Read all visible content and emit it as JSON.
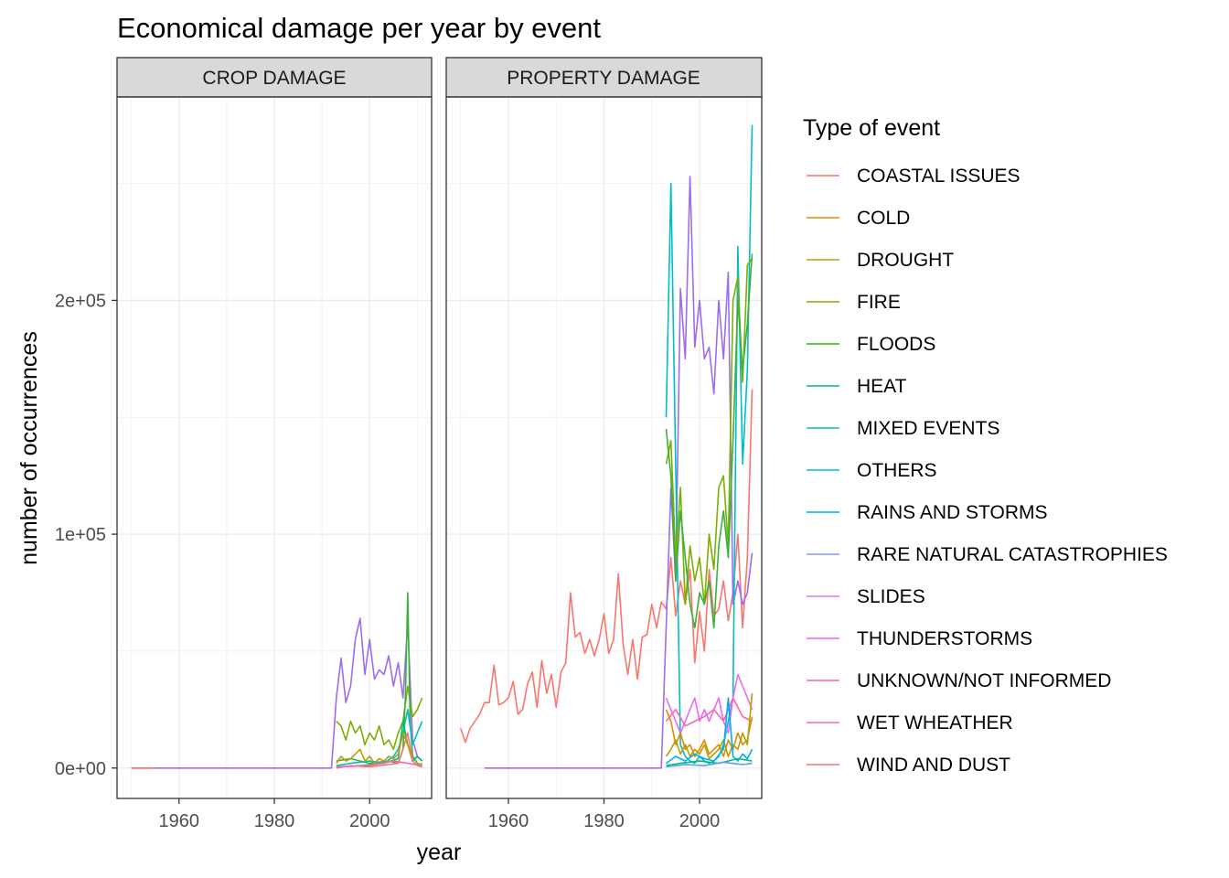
{
  "chart_data": {
    "type": "line",
    "title": "Economical damage per year by event",
    "xlabel": "year",
    "ylabel": "number of occurrences",
    "x_ticks": [
      1960,
      1980,
      2000
    ],
    "x_tick_labels": [
      "1960",
      "1980",
      "2000"
    ],
    "y_ticks": [
      0,
      100000,
      200000
    ],
    "y_tick_labels": [
      "0e+00",
      "1e+05",
      "2e+05"
    ],
    "xlim": [
      1947,
      2013
    ],
    "ylim": [
      -13000,
      287000
    ],
    "grid": true,
    "legend_title": "Type of event",
    "legend_position": "right",
    "series_styles": [
      {
        "name": "COASTAL ISSUES",
        "color": "#F8766D"
      },
      {
        "name": "COLD",
        "color": "#E18A00"
      },
      {
        "name": "DROUGHT",
        "color": "#BE9C00"
      },
      {
        "name": "FIRE",
        "color": "#8CAB00"
      },
      {
        "name": "FLOODS",
        "color": "#24B700"
      },
      {
        "name": "HEAT",
        "color": "#00BE70"
      },
      {
        "name": "MIXED EVENTS",
        "color": "#00C1AB"
      },
      {
        "name": "OTHERS",
        "color": "#00BBDA"
      },
      {
        "name": "RAINS AND STORMS",
        "color": "#00ACFC"
      },
      {
        "name": "RARE NATURAL CATASTROPHIES",
        "color": "#8B93FF"
      },
      {
        "name": "SLIDES",
        "color": "#D575FE"
      },
      {
        "name": "THUNDERSTORMS",
        "color": "#F962DD"
      },
      {
        "name": "UNKNOWN/NOT INFORMED",
        "color": "#FF65AC"
      },
      {
        "name": "WET WHEATHER",
        "color": "#FF6C91"
      },
      {
        "name": "WIND AND DUST",
        "color": "#F8766D"
      }
    ],
    "panels": [
      {
        "strip": "CROP DAMAGE",
        "series": [
          {
            "color": "#9D6CF0",
            "x": [
              1950,
              1955,
              1960,
              1970,
              1980,
              1992,
              1993,
              1994,
              1995,
              1996,
              1997,
              1998,
              1999,
              2000,
              2001,
              2002,
              2003,
              2004,
              2005,
              2006,
              2007,
              2008,
              2009,
              2010,
              2011
            ],
            "y": [
              0,
              0,
              0,
              0,
              0,
              0,
              30000,
              47000,
              28000,
              35000,
              55000,
              64000,
              40000,
              55000,
              38000,
              42000,
              40000,
              48000,
              35000,
              45000,
              30000,
              62000,
              12000,
              5000,
              3000
            ]
          },
          {
            "color": "#7CAE00",
            "x": [
              1993,
              1994,
              1995,
              1996,
              1997,
              1998,
              1999,
              2000,
              2001,
              2002,
              2003,
              2004,
              2005,
              2006,
              2007,
              2008,
              2009,
              2010,
              2011
            ],
            "y": [
              20000,
              18000,
              12000,
              20000,
              15000,
              18000,
              10000,
              15000,
              12000,
              18000,
              10000,
              12000,
              8000,
              15000,
              20000,
              35000,
              22000,
              25000,
              30000
            ]
          },
          {
            "color": "#3EAF3E",
            "x": [
              1993,
              1996,
              2000,
              2004,
              2006,
              2007,
              2007.5,
              2008,
              2008.5,
              2009,
              2010,
              2011
            ],
            "y": [
              3000,
              4000,
              2000,
              3000,
              2000,
              8000,
              30000,
              75000,
              20000,
              5000,
              2000,
              1000
            ]
          },
          {
            "color": "#00BFC4",
            "x": [
              1993,
              1996,
              2000,
              2003,
              2005,
              2006,
              2007,
              2008,
              2009,
              2010,
              2011
            ],
            "y": [
              1000,
              2000,
              3000,
              2000,
              5000,
              8000,
              15000,
              25000,
              10000,
              15000,
              20000
            ]
          },
          {
            "color": "#00BE70",
            "x": [
              1993,
              1998,
              2003,
              2006,
              2007,
              2008,
              2009,
              2010,
              2011
            ],
            "y": [
              500,
              1000,
              2000,
              4000,
              20000,
              10000,
              3000,
              5000,
              3000
            ]
          },
          {
            "color": "#B79F00",
            "x": [
              1993,
              1994,
              1995,
              1996,
              1997,
              1998,
              1999,
              2000,
              2001,
              2002,
              2003,
              2004,
              2005,
              2006,
              2007,
              2008,
              2009,
              2010,
              2011
            ],
            "y": [
              2000,
              5000,
              3000,
              4000,
              6000,
              8000,
              3000,
              5000,
              2000,
              4000,
              3000,
              5000,
              4000,
              6000,
              15000,
              10000,
              3000,
              1000,
              2000
            ]
          },
          {
            "color": "#F8766D",
            "x": [
              1993,
              1996,
              2000,
              2004,
              2006,
              2007,
              2008,
              2009,
              2010,
              2011
            ],
            "y": [
              0,
              1000,
              500,
              1500,
              2000,
              8000,
              15000,
              3000,
              1000,
              500
            ]
          },
          {
            "color": "#FF65AC",
            "x": [
              1993,
              2000,
              2005,
              2008,
              2011
            ],
            "y": [
              500,
              1000,
              3000,
              2000,
              1000
            ]
          },
          {
            "color": "#F8766D",
            "x": [
              1950,
              1955
            ],
            "y": [
              0,
              0
            ]
          }
        ]
      },
      {
        "strip": "PROPERTY DAMAGE",
        "series": [
          {
            "color": "#F8766D",
            "x": [
              1950,
              1951,
              1952,
              1953,
              1954,
              1955,
              1956,
              1957,
              1958,
              1959,
              1960,
              1961,
              1962,
              1963,
              1964,
              1965,
              1966,
              1967,
              1968,
              1969,
              1970,
              1971,
              1972,
              1973,
              1974,
              1975,
              1976,
              1977,
              1978,
              1979,
              1980,
              1981,
              1982,
              1983,
              1984,
              1985,
              1986,
              1987,
              1988,
              1989,
              1990,
              1991,
              1992,
              1993,
              1994,
              1995,
              1996,
              1997,
              1998,
              1999,
              2000,
              2001,
              2002,
              2003,
              2004,
              2005,
              2006,
              2007,
              2008,
              2009,
              2010,
              2011
            ],
            "y": [
              17000,
              11000,
              17000,
              20000,
              23000,
              28000,
              28000,
              44000,
              27000,
              28000,
              30000,
              37000,
              23000,
              25000,
              36000,
              41000,
              26000,
              46000,
              32000,
              40000,
              26000,
              41000,
              45000,
              75000,
              56000,
              58000,
              49000,
              55000,
              48000,
              55000,
              66000,
              49000,
              55000,
              83000,
              53000,
              40000,
              55000,
              38000,
              56000,
              57000,
              70000,
              60000,
              71000,
              68000,
              90000,
              65000,
              80000,
              70000,
              85000,
              45000,
              67000,
              50000,
              85000,
              65000,
              68000,
              80000,
              63000,
              75000,
              100000,
              60000,
              90000,
              162000
            ]
          },
          {
            "color": "#9D6CF0",
            "x": [
              1955,
              1960,
              1970,
              1980,
              1990,
              1992,
              1993,
              1994,
              1995,
              1996,
              1997,
              1998,
              1999,
              2000,
              2001,
              2002,
              2003,
              2004,
              2005,
              2006,
              2007,
              2008,
              2009,
              2010,
              2011
            ],
            "y": [
              0,
              0,
              0,
              0,
              0,
              0,
              60000,
              120000,
              80000,
              205000,
              175000,
              253000,
              180000,
              200000,
              175000,
              180000,
              160000,
              200000,
              175000,
              212000,
              70000,
              80000,
              70000,
              75000,
              92000
            ]
          },
          {
            "color": "#00BFC4",
            "x": [
              1993,
              1994,
              1995,
              1996,
              1997,
              1998,
              1999,
              2000,
              2001,
              2002,
              2003,
              2004,
              2005,
              2006,
              2007,
              2008,
              2009,
              2010,
              2011
            ],
            "y": [
              150000,
              250000,
              130000,
              10000,
              5000,
              3000,
              2000,
              5000,
              3000,
              2000,
              3000,
              5000,
              10000,
              20000,
              30000,
              223000,
              130000,
              170000,
              275000
            ]
          },
          {
            "color": "#7CAE00",
            "x": [
              1993,
              1994,
              1995,
              1996,
              1997,
              1998,
              1999,
              2000,
              2001,
              2002,
              2003,
              2004,
              2005,
              2006,
              2007,
              2008,
              2009,
              2010,
              2011
            ],
            "y": [
              130000,
              140000,
              90000,
              120000,
              70000,
              95000,
              80000,
              90000,
              70000,
              100000,
              85000,
              120000,
              125000,
              95000,
              200000,
              210000,
              165000,
              215000,
              218000
            ]
          },
          {
            "color": "#3EAF3E",
            "x": [
              1993,
              1994,
              1995,
              1996,
              1997,
              1998,
              1999,
              2000,
              2001,
              2002,
              2003,
              2004,
              2005,
              2006,
              2007,
              2008,
              2009,
              2010,
              2011
            ],
            "y": [
              145000,
              125000,
              80000,
              110000,
              90000,
              70000,
              60000,
              75000,
              70000,
              80000,
              60000,
              95000,
              110000,
              90000,
              140000,
              200000,
              170000,
              190000,
              220000
            ]
          },
          {
            "color": "#E76BF3",
            "x": [
              1993,
              1994,
              1995,
              1996,
              1997,
              1998,
              1999,
              2000,
              2001,
              2002,
              2003,
              2004,
              2005,
              2006,
              2007,
              2008,
              2009,
              2010,
              2011
            ],
            "y": [
              30000,
              25000,
              20000,
              15000,
              20000,
              25000,
              30000,
              20000,
              25000,
              20000,
              25000,
              30000,
              20000,
              15000,
              30000,
              40000,
              35000,
              30000,
              25000
            ]
          },
          {
            "color": "#FF65AC",
            "x": [
              1993,
              1995,
              1997,
              1999,
              2001,
              2003,
              2005,
              2007,
              2009,
              2011
            ],
            "y": [
              20000,
              25000,
              18000,
              20000,
              22000,
              25000,
              20000,
              30000,
              22000,
              20000
            ]
          },
          {
            "color": "#E18A00",
            "x": [
              1993,
              1994,
              1995,
              1996,
              1997,
              1998,
              1999,
              2000,
              2001,
              2002,
              2003,
              2004,
              2005,
              2006,
              2007,
              2008,
              2009,
              2010,
              2011
            ],
            "y": [
              25000,
              20000,
              10000,
              15000,
              8000,
              10000,
              5000,
              8000,
              12000,
              6000,
              8000,
              10000,
              5000,
              12000,
              8000,
              15000,
              10000,
              12000,
              22000
            ]
          },
          {
            "color": "#B79F00",
            "x": [
              1993,
              1994,
              1995,
              1996,
              1997,
              1998,
              1999,
              2000,
              2001,
              2002,
              2003,
              2004,
              2005,
              2006,
              2007,
              2008,
              2009,
              2010,
              2011
            ],
            "y": [
              5000,
              8000,
              12000,
              6000,
              10000,
              5000,
              8000,
              6000,
              10000,
              4000,
              6000,
              8000,
              12000,
              5000,
              10000,
              8000,
              15000,
              10000,
              32000
            ]
          },
          {
            "color": "#00ACFC",
            "x": [
              1993,
              1995,
              1997,
              1999,
              2001,
              2003,
              2005,
              2006,
              2007,
              2008,
              2009,
              2010,
              2011
            ],
            "y": [
              2000,
              5000,
              3000,
              6000,
              4000,
              3000,
              8000,
              30000,
              5000,
              3000,
              6000,
              4000,
              8000
            ]
          },
          {
            "color": "#00BE70",
            "x": [
              1993,
              1996,
              2000,
              2004,
              2008,
              2011
            ],
            "y": [
              1000,
              2000,
              3000,
              2000,
              4000,
              3000
            ]
          },
          {
            "color": "#619CFF",
            "x": [
              1993,
              1997,
              2001,
              2005,
              2009,
              2011
            ],
            "y": [
              500,
              1500,
              1000,
              2500,
              1500,
              2000
            ]
          }
        ]
      }
    ]
  }
}
